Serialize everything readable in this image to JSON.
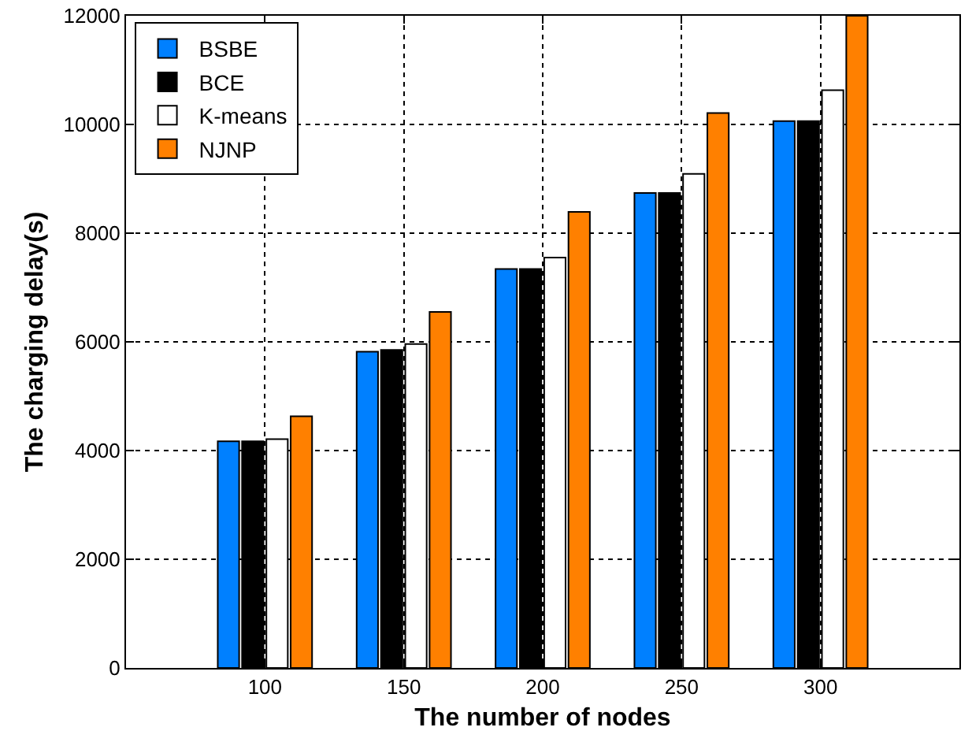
{
  "chart_data": {
    "type": "bar",
    "xlabel": "The number of nodes",
    "ylabel": "The charging delay(s)",
    "x": [
      100,
      150,
      200,
      250,
      300
    ],
    "series": [
      {
        "name": "BSBE",
        "color": "#0080ff",
        "values": [
          4170,
          5820,
          7340,
          8740,
          10060
        ]
      },
      {
        "name": "BCE",
        "color": "#000000",
        "values": [
          4170,
          5850,
          7340,
          8740,
          10060
        ]
      },
      {
        "name": "K-means",
        "color": "#ffffff",
        "values": [
          4210,
          5960,
          7550,
          9090,
          10630
        ]
      },
      {
        "name": "NJNP",
        "color": "#ff8000",
        "values": [
          4630,
          6550,
          8390,
          10210,
          12000
        ]
      }
    ],
    "xlim": [
      50,
      350
    ],
    "xticks": [
      100,
      150,
      200,
      250,
      300
    ],
    "ylim": [
      0,
      12000
    ],
    "yticks": [
      0,
      2000,
      4000,
      6000,
      8000,
      10000,
      12000
    ],
    "grid": true,
    "legend": "top left"
  }
}
